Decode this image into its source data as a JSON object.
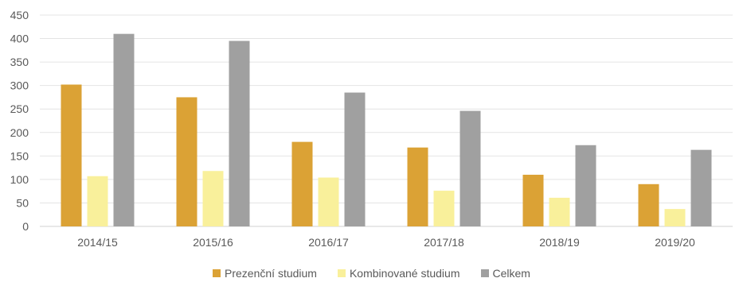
{
  "chart_data": {
    "type": "bar",
    "categories": [
      "2014/15",
      "2015/16",
      "2016/17",
      "2017/18",
      "2018/19",
      "2019/20"
    ],
    "series": [
      {
        "name": "Prezenční studium",
        "color": "#DBA235",
        "values": [
          302,
          275,
          180,
          168,
          110,
          90
        ]
      },
      {
        "name": "Kombinované studium",
        "color": "#F9F09B",
        "values": [
          107,
          118,
          104,
          76,
          61,
          37
        ]
      },
      {
        "name": "Celkem",
        "color": "#A0A0A0",
        "values": [
          410,
          395,
          285,
          246,
          173,
          163
        ]
      }
    ],
    "ylim": [
      0,
      450
    ],
    "yticks": [
      0,
      50,
      100,
      150,
      200,
      250,
      300,
      350,
      400,
      450
    ],
    "grid": true,
    "legend_position": "bottom"
  }
}
